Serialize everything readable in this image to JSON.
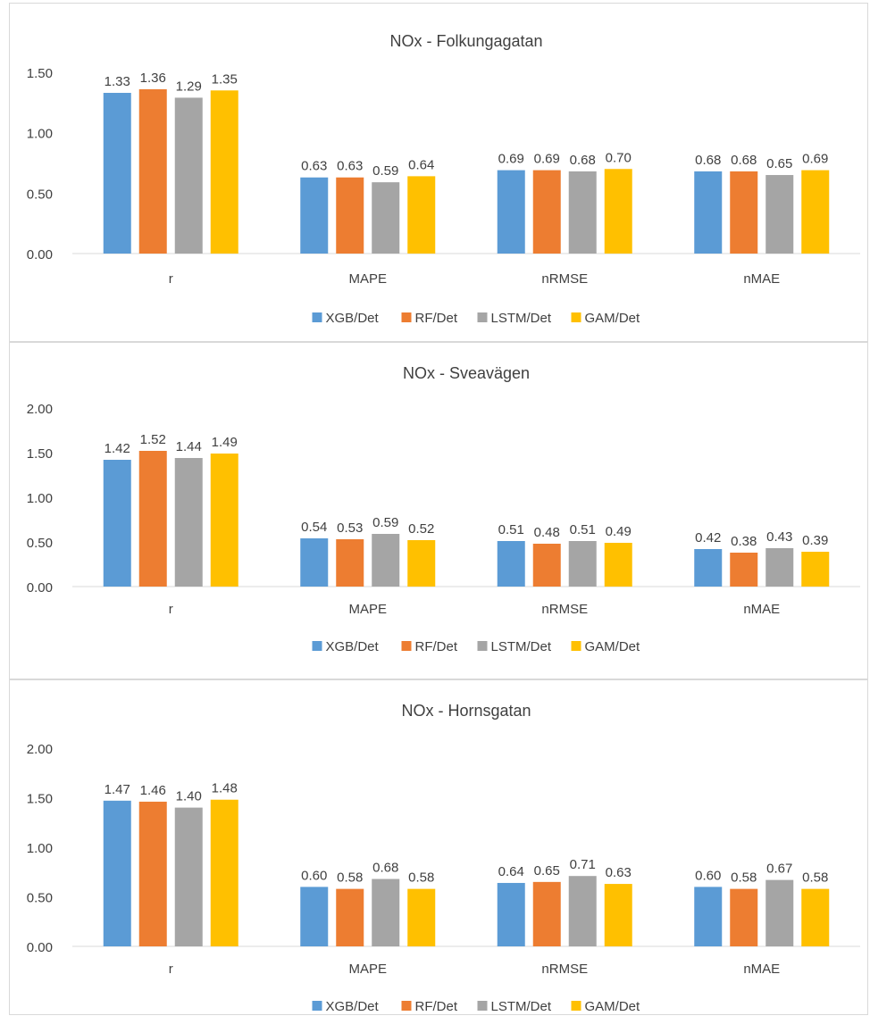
{
  "legend_colors": {
    "XGB/Det": "#5b9bd5",
    "RF/Det": "#ed7d31",
    "LSTM/Det": "#a5a5a5",
    "GAM/Det": "#ffc000"
  },
  "chart_data": [
    {
      "type": "bar",
      "title": "NOx - Folkungagatan",
      "categories": [
        "r",
        "MAPE",
        "nRMSE",
        "nMAE"
      ],
      "ylim": [
        0,
        1.5
      ],
      "yticks": [
        "0.00",
        "0.50",
        "1.00",
        "1.50"
      ],
      "legend_position": "bottom",
      "grid": false,
      "series": [
        {
          "name": "XGB/Det",
          "values": [
            1.33,
            0.63,
            0.69,
            0.68
          ],
          "labels": [
            "1.33",
            "0.63",
            "0.69",
            "0.68"
          ]
        },
        {
          "name": "RF/Det",
          "values": [
            1.36,
            0.63,
            0.69,
            0.68
          ],
          "labels": [
            "1.36",
            "0.63",
            "0.69",
            "0.68"
          ]
        },
        {
          "name": "LSTM/Det",
          "values": [
            1.29,
            0.59,
            0.68,
            0.65
          ],
          "labels": [
            "1.29",
            "0.59",
            "0.68",
            "0.65"
          ]
        },
        {
          "name": "GAM/Det",
          "values": [
            1.35,
            0.64,
            0.7,
            0.69
          ],
          "labels": [
            "1.35",
            "0.64",
            "0.70",
            "0.69"
          ]
        }
      ]
    },
    {
      "type": "bar",
      "title": "NOx - Sveavägen",
      "categories": [
        "r",
        "MAPE",
        "nRMSE",
        "nMAE"
      ],
      "ylim": [
        0,
        2.0
      ],
      "yticks": [
        "0.00",
        "0.50",
        "1.00",
        "1.50",
        "2.00"
      ],
      "legend_position": "bottom",
      "grid": false,
      "series": [
        {
          "name": "XGB/Det",
          "values": [
            1.42,
            0.54,
            0.51,
            0.42
          ],
          "labels": [
            "1.42",
            "0.54",
            "0.51",
            "0.42"
          ]
        },
        {
          "name": "RF/Det",
          "values": [
            1.52,
            0.53,
            0.48,
            0.38
          ],
          "labels": [
            "1.52",
            "0.53",
            "0.48",
            "0.38"
          ]
        },
        {
          "name": "LSTM/Det",
          "values": [
            1.44,
            0.59,
            0.51,
            0.43
          ],
          "labels": [
            "1.44",
            "0.59",
            "0.51",
            "0.43"
          ]
        },
        {
          "name": "GAM/Det",
          "values": [
            1.49,
            0.52,
            0.49,
            0.39
          ],
          "labels": [
            "1.49",
            "0.52",
            "0.49",
            "0.39"
          ]
        }
      ]
    },
    {
      "type": "bar",
      "title": "NOx - Hornsgatan",
      "categories": [
        "r",
        "MAPE",
        "nRMSE",
        "nMAE"
      ],
      "ylim": [
        0,
        2.0
      ],
      "yticks": [
        "0.00",
        "0.50",
        "1.00",
        "1.50",
        "2.00"
      ],
      "legend_position": "bottom",
      "grid": false,
      "series": [
        {
          "name": "XGB/Det",
          "values": [
            1.47,
            0.6,
            0.64,
            0.6
          ],
          "labels": [
            "1.47",
            "0.60",
            "0.64",
            "0.60"
          ]
        },
        {
          "name": "RF/Det",
          "values": [
            1.46,
            0.58,
            0.65,
            0.58
          ],
          "labels": [
            "1.46",
            "0.58",
            "0.65",
            "0.58"
          ]
        },
        {
          "name": "LSTM/Det",
          "values": [
            1.4,
            0.68,
            0.71,
            0.67
          ],
          "labels": [
            "1.40",
            "0.68",
            "0.71",
            "0.67"
          ]
        },
        {
          "name": "GAM/Det",
          "values": [
            1.48,
            0.58,
            0.63,
            0.58
          ],
          "labels": [
            "1.48",
            "0.58",
            "0.63",
            "0.58"
          ]
        }
      ]
    }
  ]
}
